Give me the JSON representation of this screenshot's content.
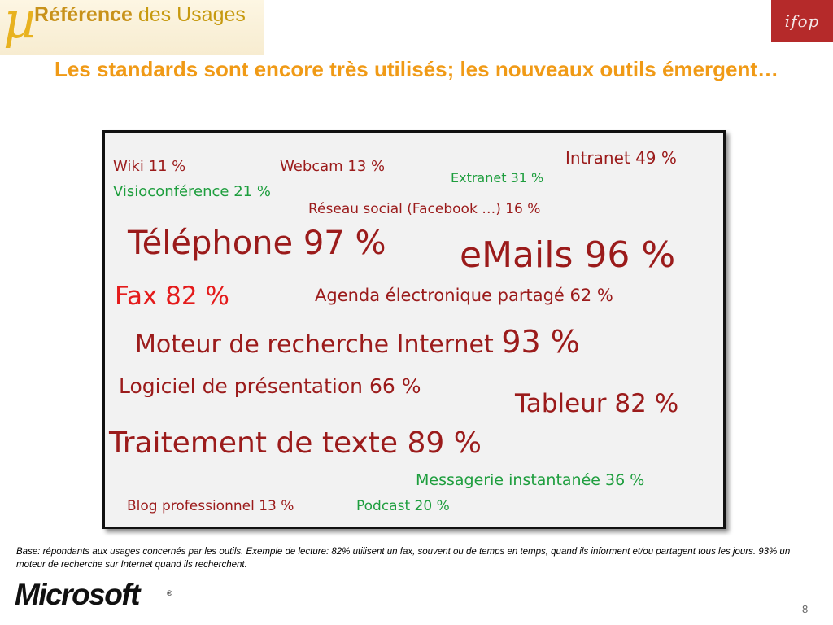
{
  "header": {
    "logo_mu": "µ",
    "logo_bold": "Référence",
    "logo_rest": " des Usages",
    "ifop_logo": "ifop",
    "title": "Les standards sont encore très utilisés; les nouveaux outils émergent…"
  },
  "words": [
    {
      "id": "intranet",
      "text": "Intranet 49 %"
    },
    {
      "id": "wiki",
      "text": "Wiki 11 %"
    },
    {
      "id": "webcam",
      "text": "Webcam 13 %"
    },
    {
      "id": "extranet",
      "text": "Extranet 31 %"
    },
    {
      "id": "visio",
      "text": "Visioconférence 21 %"
    },
    {
      "id": "reseau",
      "text": "Réseau social (Facebook …) 16 %"
    },
    {
      "id": "telephone",
      "text": "Téléphone 97 %"
    },
    {
      "id": "emails",
      "text": "eMails 96 %"
    },
    {
      "id": "fax",
      "text": "Fax 82 %"
    },
    {
      "id": "agenda",
      "text": "Agenda électronique partagé 62 %"
    },
    {
      "id": "moteur_label",
      "text": "Moteur de recherche Internet "
    },
    {
      "id": "moteur_value",
      "text": "93 %"
    },
    {
      "id": "logiciel",
      "text": "Logiciel de présentation 66 %"
    },
    {
      "id": "tableur",
      "text": "Tableur 82 %"
    },
    {
      "id": "traitement",
      "text": "Traitement de texte 89 %"
    },
    {
      "id": "messagerie",
      "text": "Messagerie instantanée 36 %"
    },
    {
      "id": "blog",
      "text": "Blog professionnel  13 %"
    },
    {
      "id": "podcast",
      "text": "Podcast   20 %"
    }
  ],
  "footer": {
    "note": "Base: répondants aux usages concernés par les outils. Exemple de lecture: 82% utilisent un fax, souvent ou de temps en temps, quand ils informent et/ou partagent tous les jours. 93% un moteur de recherche sur Internet quand ils recherchent.",
    "brand": "Microsoft",
    "trademark": "®",
    "page": "8"
  },
  "colors": {
    "title": "#f09a16",
    "dark_red": "#9b1b1b",
    "green": "#1e9e3e",
    "bright_red": "#e41b1b",
    "ifop_bg": "#b52a2a"
  }
}
